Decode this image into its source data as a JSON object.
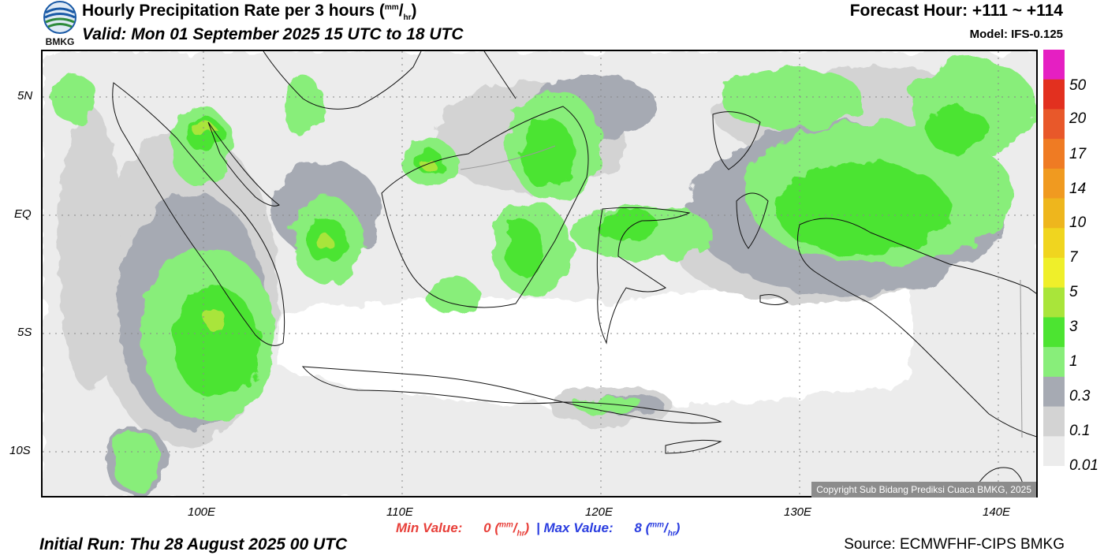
{
  "header": {
    "logo_text": "BMKG",
    "title_main": "Hourly Precipitation Rate per 3 hours (",
    "title_unit_sup": "mm",
    "title_unit_slash": "/",
    "title_unit_sub": "hr",
    "title_close": ")",
    "valid": "Valid: Mon 01 September 2025 15 UTC to 18 UTC",
    "forecast_hour": "Forecast Hour: +111 ~ +114",
    "model": "Model: IFS-0.125"
  },
  "map": {
    "lat_labels": [
      "5N",
      "EQ",
      "5S",
      "10S"
    ],
    "lon_labels": [
      "100E",
      "110E",
      "120E",
      "130E",
      "140E"
    ],
    "copyright": "Copyright Sub Bidang Prediksi Cuaca BMKG, 2025"
  },
  "colorbar": {
    "labels": [
      "50",
      "20",
      "17",
      "14",
      "10",
      "7",
      "5",
      "3",
      "1",
      "0.3",
      "0.1",
      "0.01"
    ],
    "colors": [
      "#e51fc2",
      "#e2301f",
      "#e8582a",
      "#ef7b23",
      "#f09a20",
      "#eeb61d",
      "#f0d51f",
      "#efef2a",
      "#a9e53a",
      "#4ce431",
      "#88ee7a",
      "#a6aab3",
      "#d3d3d3",
      "#ececec"
    ]
  },
  "footer": {
    "min_label": "Min Value:",
    "min_value": "0",
    "max_sep": "|",
    "max_label": "Max Value:",
    "max_value": "8",
    "unit_sup": "mm",
    "unit_sub": "hr",
    "initial_run": "Initial Run: Thu 28 August 2025 00 UTC",
    "source": "Source: ECMWFHF-CIPS BMKG"
  }
}
